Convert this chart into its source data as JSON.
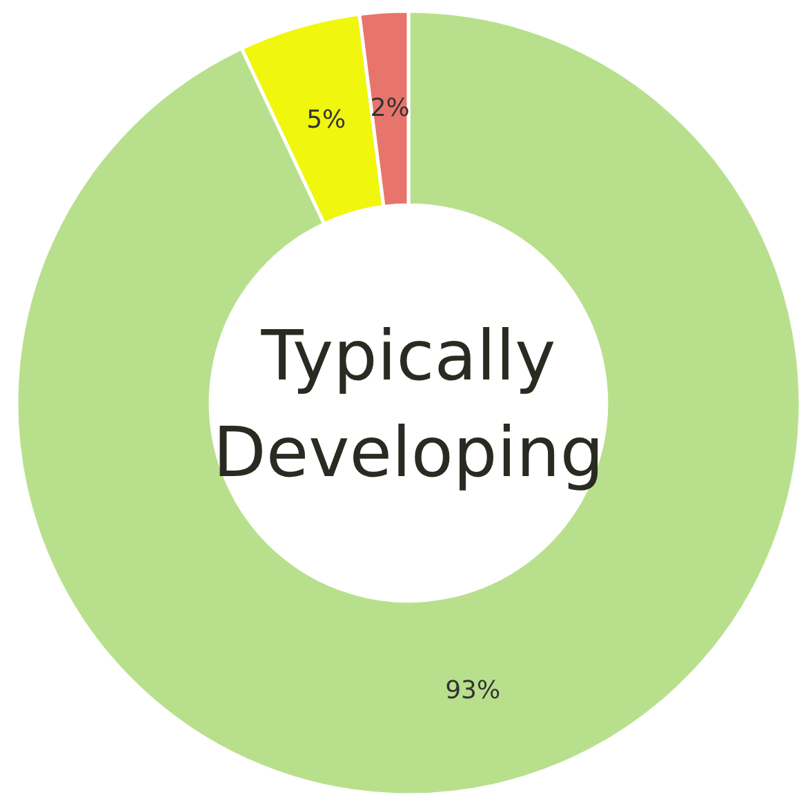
{
  "chart_data": {
    "type": "donut",
    "title": "Typically Developing",
    "categories": [
      null,
      null,
      null
    ],
    "values": [
      93,
      5,
      2
    ],
    "colors": [
      "#b8e08c",
      "#f0f60c",
      "#e8756b"
    ],
    "value_labels": [
      "93%",
      "5%",
      "2%"
    ]
  }
}
